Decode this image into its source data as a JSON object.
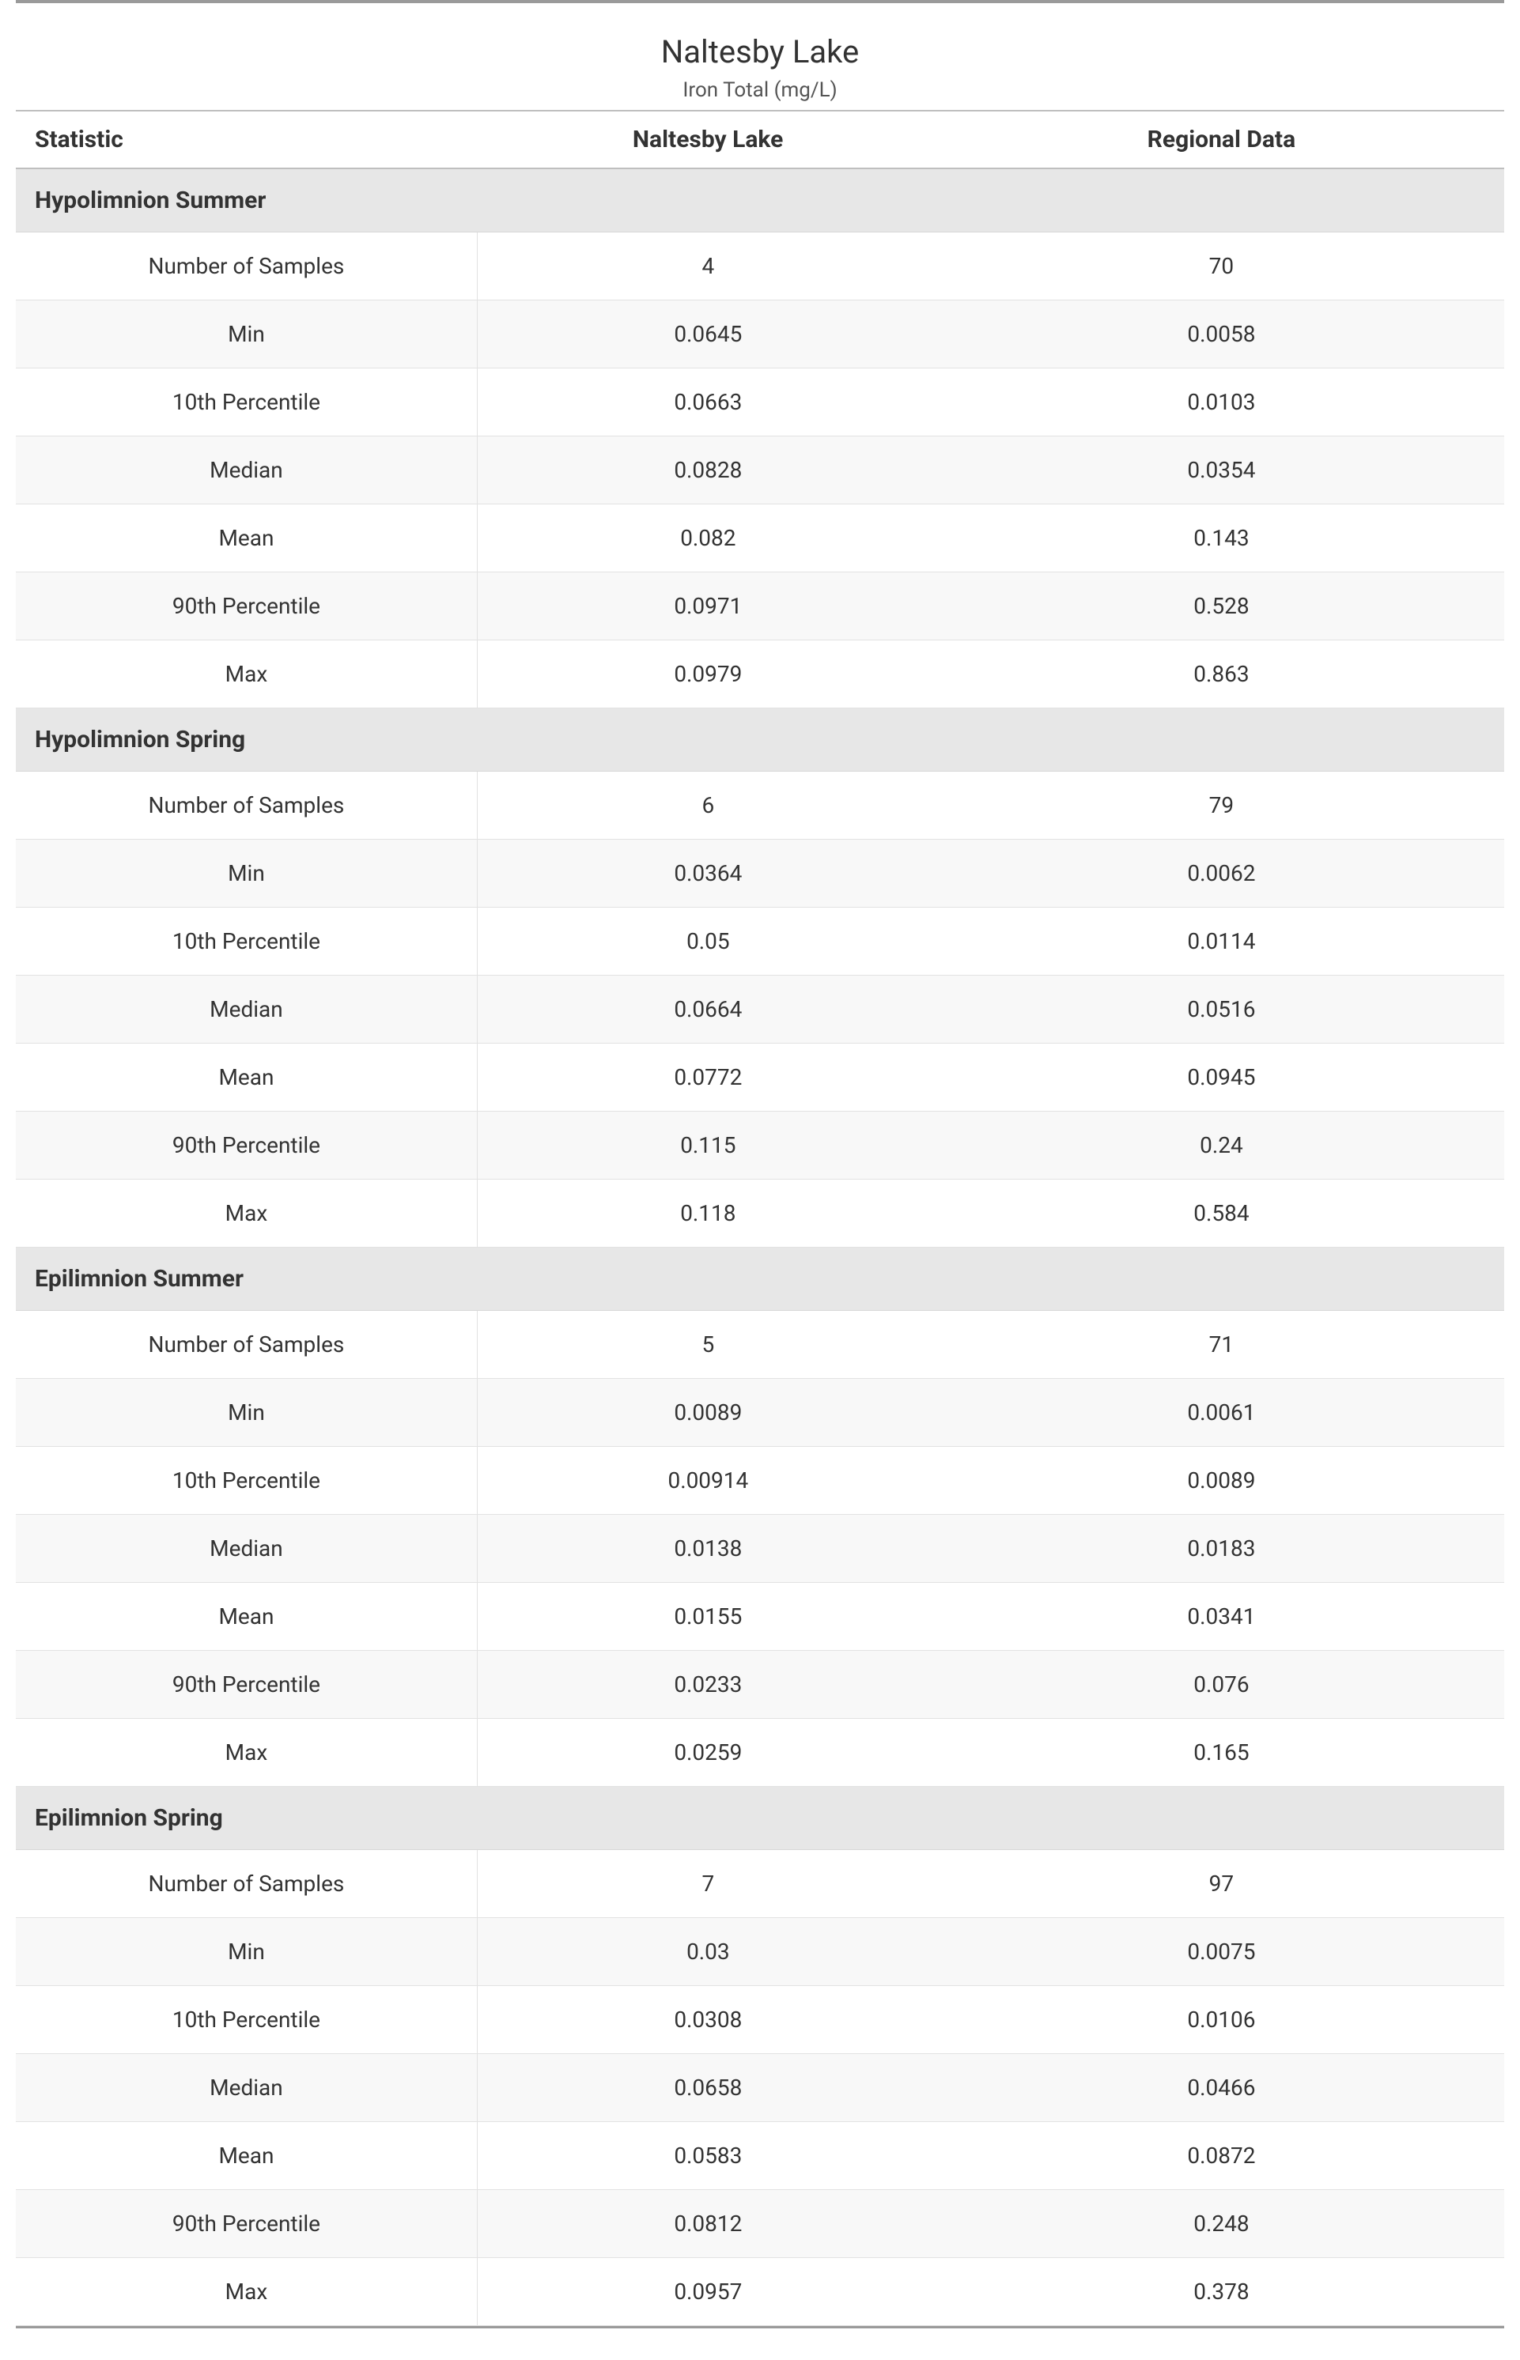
{
  "theme": {
    "page_background": "#ffffff",
    "text_color": "#333333",
    "muted_text_color": "#555555",
    "top_rule_color": "#9a9a9a",
    "header_border_color": "#bfbfbf",
    "section_background": "#e7e7e7",
    "row_border_color": "#e2e2e2",
    "zebra_a": "#ffffff",
    "zebra_b": "#f8f8f8",
    "font_family": "Segoe UI",
    "title_fontsize_pt": 30,
    "subtitle_fontsize_pt": 20,
    "header_fontsize_pt": 22,
    "cell_fontsize_pt": 21
  },
  "header": {
    "title": "Naltesby Lake",
    "subtitle": "Iron Total (mg/L)"
  },
  "table": {
    "columns": {
      "statistic": "Statistic",
      "lake": "Naltesby Lake",
      "regional": "Regional Data"
    },
    "column_widths_pct": [
      31,
      31,
      38
    ],
    "column_align": [
      "left",
      "center",
      "center"
    ],
    "sections": [
      {
        "title": "Hypolimnion Summer",
        "rows": [
          {
            "stat": "Number of Samples",
            "lake": "4",
            "regional": "70"
          },
          {
            "stat": "Min",
            "lake": "0.0645",
            "regional": "0.0058"
          },
          {
            "stat": "10th Percentile",
            "lake": "0.0663",
            "regional": "0.0103"
          },
          {
            "stat": "Median",
            "lake": "0.0828",
            "regional": "0.0354"
          },
          {
            "stat": "Mean",
            "lake": "0.082",
            "regional": "0.143"
          },
          {
            "stat": "90th Percentile",
            "lake": "0.0971",
            "regional": "0.528"
          },
          {
            "stat": "Max",
            "lake": "0.0979",
            "regional": "0.863"
          }
        ]
      },
      {
        "title": "Hypolimnion Spring",
        "rows": [
          {
            "stat": "Number of Samples",
            "lake": "6",
            "regional": "79"
          },
          {
            "stat": "Min",
            "lake": "0.0364",
            "regional": "0.0062"
          },
          {
            "stat": "10th Percentile",
            "lake": "0.05",
            "regional": "0.0114"
          },
          {
            "stat": "Median",
            "lake": "0.0664",
            "regional": "0.0516"
          },
          {
            "stat": "Mean",
            "lake": "0.0772",
            "regional": "0.0945"
          },
          {
            "stat": "90th Percentile",
            "lake": "0.115",
            "regional": "0.24"
          },
          {
            "stat": "Max",
            "lake": "0.118",
            "regional": "0.584"
          }
        ]
      },
      {
        "title": "Epilimnion Summer",
        "rows": [
          {
            "stat": "Number of Samples",
            "lake": "5",
            "regional": "71"
          },
          {
            "stat": "Min",
            "lake": "0.0089",
            "regional": "0.0061"
          },
          {
            "stat": "10th Percentile",
            "lake": "0.00914",
            "regional": "0.0089"
          },
          {
            "stat": "Median",
            "lake": "0.0138",
            "regional": "0.0183"
          },
          {
            "stat": "Mean",
            "lake": "0.0155",
            "regional": "0.0341"
          },
          {
            "stat": "90th Percentile",
            "lake": "0.0233",
            "regional": "0.076"
          },
          {
            "stat": "Max",
            "lake": "0.0259",
            "regional": "0.165"
          }
        ]
      },
      {
        "title": "Epilimnion Spring",
        "rows": [
          {
            "stat": "Number of Samples",
            "lake": "7",
            "regional": "97"
          },
          {
            "stat": "Min",
            "lake": "0.03",
            "regional": "0.0075"
          },
          {
            "stat": "10th Percentile",
            "lake": "0.0308",
            "regional": "0.0106"
          },
          {
            "stat": "Median",
            "lake": "0.0658",
            "regional": "0.0466"
          },
          {
            "stat": "Mean",
            "lake": "0.0583",
            "regional": "0.0872"
          },
          {
            "stat": "90th Percentile",
            "lake": "0.0812",
            "regional": "0.248"
          },
          {
            "stat": "Max",
            "lake": "0.0957",
            "regional": "0.378"
          }
        ]
      }
    ]
  }
}
